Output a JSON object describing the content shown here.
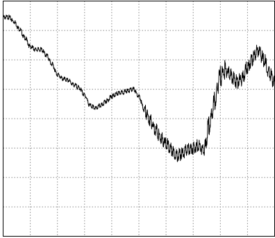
{
  "chart_data": {
    "type": "line",
    "title": "",
    "xlabel": "",
    "ylabel": "",
    "grid": true,
    "grid_divisions": {
      "x": 10,
      "y": 8
    },
    "xlim": [
      0,
      10
    ],
    "ylim": [
      0,
      8
    ],
    "colors": {
      "line": "#000000",
      "grid": "#8a8a8a",
      "frame": "#000000",
      "background": "#ffffff"
    },
    "series": [
      {
        "x": [
          0.0,
          0.2,
          0.4,
          0.6,
          0.8,
          1.0,
          1.2,
          1.4,
          1.6,
          1.8,
          2.0,
          2.2,
          2.4,
          2.6,
          2.8,
          3.0,
          3.2,
          3.4,
          3.6,
          3.8,
          4.0,
          4.2,
          4.4,
          4.6,
          4.8,
          5.0,
          5.2,
          5.4,
          5.6,
          5.8,
          6.0,
          6.2,
          6.4,
          6.6,
          6.8,
          7.0,
          7.2,
          7.4,
          7.6,
          7.8,
          8.0,
          8.2,
          8.4,
          8.6,
          8.8,
          9.0,
          9.2,
          9.4,
          9.6,
          9.8,
          10.0
        ],
        "y": [
          7.45,
          7.45,
          7.3,
          7.05,
          6.75,
          6.45,
          6.35,
          6.35,
          6.15,
          5.85,
          5.5,
          5.35,
          5.3,
          5.15,
          5.05,
          4.8,
          4.45,
          4.35,
          4.45,
          4.6,
          4.75,
          4.85,
          4.9,
          4.95,
          5.0,
          4.75,
          4.3,
          3.95,
          3.65,
          3.35,
          3.15,
          2.95,
          2.75,
          2.8,
          2.95,
          3.0,
          3.1,
          2.9,
          3.8,
          4.6,
          5.45,
          5.65,
          5.45,
          5.25,
          5.35,
          5.75,
          6.05,
          6.35,
          6.0,
          5.55,
          5.2
        ]
      }
    ]
  }
}
